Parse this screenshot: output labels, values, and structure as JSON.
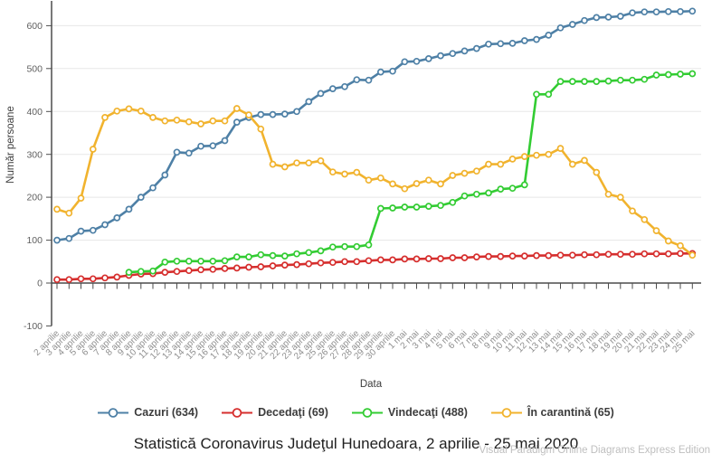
{
  "title": "Statistică Coronavirus Judeţul Hunedoara, 2 aprilie - 25 mai 2020",
  "watermark": "Visual Paradigm Online Diagrams Express Edition",
  "chart_data": {
    "type": "line",
    "title": "Statistică Coronavirus Judeţul Hunedoara, 2 aprilie - 25 mai 2020",
    "xlabel": "Data",
    "ylabel": "Număr persoane",
    "ylim": [
      -100,
      650
    ],
    "ytick_step": 100,
    "yticks": [
      -100,
      0,
      100,
      200,
      300,
      400,
      500,
      600
    ],
    "grid": true,
    "legend_position": "bottom",
    "marker": "open-circle",
    "categories": [
      "2 aprilie",
      "3 aprilie",
      "4 aprilie",
      "5 aprilie",
      "6 aprilie",
      "7 aprilie",
      "8 aprilie",
      "9 aprilie",
      "10 aprilie",
      "11 aprilie",
      "12 aprilie",
      "13 aprilie",
      "14 aprilie",
      "15 aprilie",
      "16 aprilie",
      "17 aprilie",
      "18 aprilie",
      "19 aprilie",
      "20 aprilie",
      "21 aprilie",
      "22 aprilie",
      "23 aprilie",
      "24 aprilie",
      "25 aprilie",
      "26 aprilie",
      "27 aprilie",
      "28 aprilie",
      "29 aprilie",
      "30 aprilie",
      "1 mai",
      "2 mai",
      "3 mai",
      "4 mai",
      "5 mai",
      "6 mai",
      "7 mai",
      "8 mai",
      "9 mai",
      "10 mai",
      "11 mai",
      "12 mai",
      "13 mai",
      "14 mai",
      "15 mai",
      "16 mai",
      "17 mai",
      "18 mai",
      "19 mai",
      "20 mai",
      "21 mai",
      "22 mai",
      "23 mai",
      "24 mai",
      "25 mai"
    ],
    "series": [
      {
        "key": "cazuri",
        "name": "Cazuri (634)",
        "color": "#4e80a6",
        "final_value": 634,
        "values": [
          100,
          104,
          121,
          123,
          136,
          152,
          172,
          200,
          222,
          252,
          305,
          303,
          319,
          320,
          332,
          375,
          386,
          393,
          393,
          394,
          400,
          423,
          442,
          453,
          458,
          474,
          473,
          492,
          494,
          516,
          517,
          523,
          530,
          535,
          541,
          547,
          557,
          558,
          559,
          565,
          568,
          578,
          595,
          603,
          612,
          619,
          620,
          622,
          630,
          632,
          632,
          633,
          633,
          634
        ]
      },
      {
        "key": "decedati",
        "name": "Decedaţi (69)",
        "color": "#d62f2e",
        "final_value": 69,
        "values": [
          8,
          8,
          10,
          10,
          12,
          14,
          18,
          21,
          22,
          25,
          27,
          29,
          31,
          32,
          34,
          35,
          37,
          38,
          40,
          42,
          43,
          45,
          47,
          48,
          50,
          50,
          52,
          54,
          54,
          56,
          56,
          57,
          57,
          59,
          59,
          61,
          62,
          62,
          63,
          63,
          64,
          64,
          65,
          65,
          66,
          66,
          67,
          67,
          67,
          68,
          68,
          68,
          69,
          69
        ]
      },
      {
        "key": "vindecati",
        "name": "Vindecaţi (488)",
        "color": "#33cc33",
        "final_value": 488,
        "values": [
          null,
          null,
          null,
          null,
          null,
          null,
          25,
          27,
          28,
          49,
          51,
          51,
          51,
          51,
          52,
          61,
          61,
          66,
          64,
          63,
          68,
          71,
          75,
          84,
          85,
          85,
          89,
          174,
          175,
          177,
          177,
          179,
          181,
          188,
          203,
          207,
          210,
          219,
          221,
          229,
          440,
          440,
          470,
          470,
          470,
          470,
          471,
          473,
          473,
          475,
          485,
          486,
          487,
          488
        ]
      },
      {
        "key": "carantina",
        "name": "În carantină (65)",
        "color": "#f1b32e",
        "final_value": 65,
        "values": [
          172,
          163,
          198,
          312,
          386,
          401,
          406,
          401,
          386,
          378,
          380,
          376,
          371,
          378,
          378,
          407,
          392,
          359,
          277,
          271,
          280,
          280,
          285,
          259,
          254,
          258,
          240,
          245,
          231,
          220,
          232,
          240,
          231,
          251,
          256,
          261,
          277,
          277,
          289,
          295,
          298,
          300,
          314,
          277,
          286,
          258,
          207,
          200,
          168,
          148,
          122,
          98,
          87,
          65
        ]
      }
    ]
  }
}
